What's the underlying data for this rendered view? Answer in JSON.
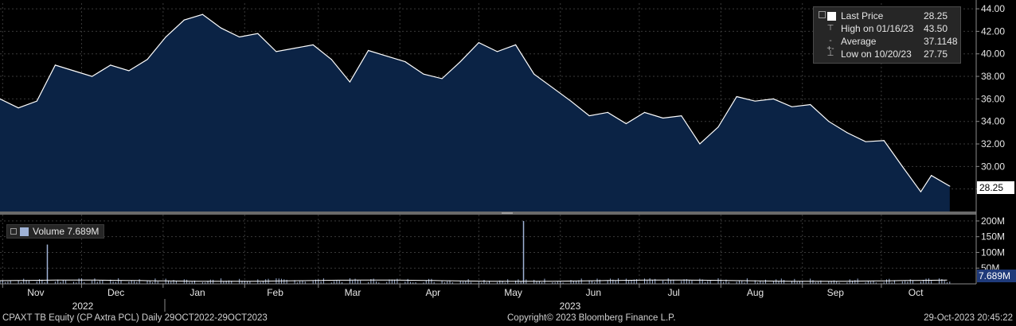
{
  "chart_data": [
    {
      "type": "area",
      "title": "",
      "ylim": [
        26.0,
        44.5
      ],
      "yticks": [
        "28.00",
        "30.00",
        "32.00",
        "34.00",
        "36.00",
        "38.00",
        "40.00",
        "42.00",
        "44.00"
      ],
      "ytick_values": [
        28,
        30,
        32,
        34,
        36,
        38,
        40,
        42,
        44
      ],
      "x": [
        "2022-10-31",
        "2022-11-07",
        "2022-11-14",
        "2022-11-21",
        "2022-11-28",
        "2022-12-05",
        "2022-12-12",
        "2022-12-19",
        "2022-12-26",
        "2023-01-02",
        "2023-01-09",
        "2023-01-16",
        "2023-01-23",
        "2023-01-30",
        "2023-02-06",
        "2023-02-13",
        "2023-02-20",
        "2023-02-27",
        "2023-03-06",
        "2023-03-13",
        "2023-03-20",
        "2023-03-27",
        "2023-04-03",
        "2023-04-10",
        "2023-04-17",
        "2023-04-24",
        "2023-05-01",
        "2023-05-08",
        "2023-05-15",
        "2023-05-22",
        "2023-05-29",
        "2023-06-05",
        "2023-06-12",
        "2023-06-19",
        "2023-06-26",
        "2023-07-03",
        "2023-07-10",
        "2023-07-17",
        "2023-07-24",
        "2023-07-31",
        "2023-08-07",
        "2023-08-14",
        "2023-08-21",
        "2023-08-28",
        "2023-09-04",
        "2023-09-11",
        "2023-09-18",
        "2023-09-25",
        "2023-10-02",
        "2023-10-09",
        "2023-10-16",
        "2023-10-20",
        "2023-10-27"
      ],
      "series": [
        {
          "name": "Last Price",
          "values": [
            36.0,
            35.2,
            35.8,
            39.0,
            38.5,
            38.0,
            39.0,
            38.5,
            39.5,
            41.5,
            43.0,
            43.5,
            42.3,
            41.5,
            41.8,
            40.2,
            40.5,
            40.8,
            39.5,
            37.5,
            40.3,
            39.8,
            39.3,
            38.2,
            37.8,
            39.3,
            41.0,
            40.2,
            40.8,
            38.2,
            37.0,
            35.8,
            34.5,
            34.8,
            33.8,
            34.8,
            34.3,
            34.5,
            32.0,
            33.5,
            36.2,
            35.8,
            36.0,
            35.3,
            35.5,
            34.0,
            33.0,
            32.2,
            32.3,
            30.0,
            27.75,
            29.2,
            28.25
          ]
        }
      ],
      "legend": {
        "placement": "top-right",
        "last_price_label": "Last Price",
        "last_price_value": "28.25",
        "high_label": "High on 01/16/23",
        "high_value": "43.50",
        "average_label": "Average",
        "average_value": "37.1148",
        "low_label": "Low on 10/20/23",
        "low_value": "27.75"
      },
      "last_value_badge": "28.25",
      "colors": {
        "area_fill": "#0b2345",
        "line": "#ffffff"
      }
    },
    {
      "type": "bar",
      "title": "",
      "ylim": [
        0,
        220
      ],
      "yticks": [
        "50M",
        "100M",
        "150M",
        "200M"
      ],
      "ytick_values": [
        50,
        100,
        150,
        200
      ],
      "unit": "M",
      "legend_label": "Volume",
      "legend_value": "7.689M",
      "last_value_badge": "7.689M",
      "spikes": [
        {
          "x": "2022-11-18",
          "value": 125
        },
        {
          "x": "2023-05-18",
          "value": 200
        }
      ],
      "colors": {
        "bar": "#9fb2d6"
      }
    }
  ],
  "x_axis": {
    "months": [
      "Nov",
      "Dec",
      "Jan",
      "Feb",
      "Mar",
      "Apr",
      "May",
      "Jun",
      "Jul",
      "Aug",
      "Sep",
      "Oct"
    ],
    "years": [
      "2022",
      "2023"
    ]
  },
  "footer": {
    "ticker": "CPAXT TB Equity (CP Axtra PCL)  Daily 29OCT2022-29OCT2023",
    "copyright": "Copyright© 2023 Bloomberg Finance L.P.",
    "timestamp": "29-Oct-2023 20:45:22"
  }
}
